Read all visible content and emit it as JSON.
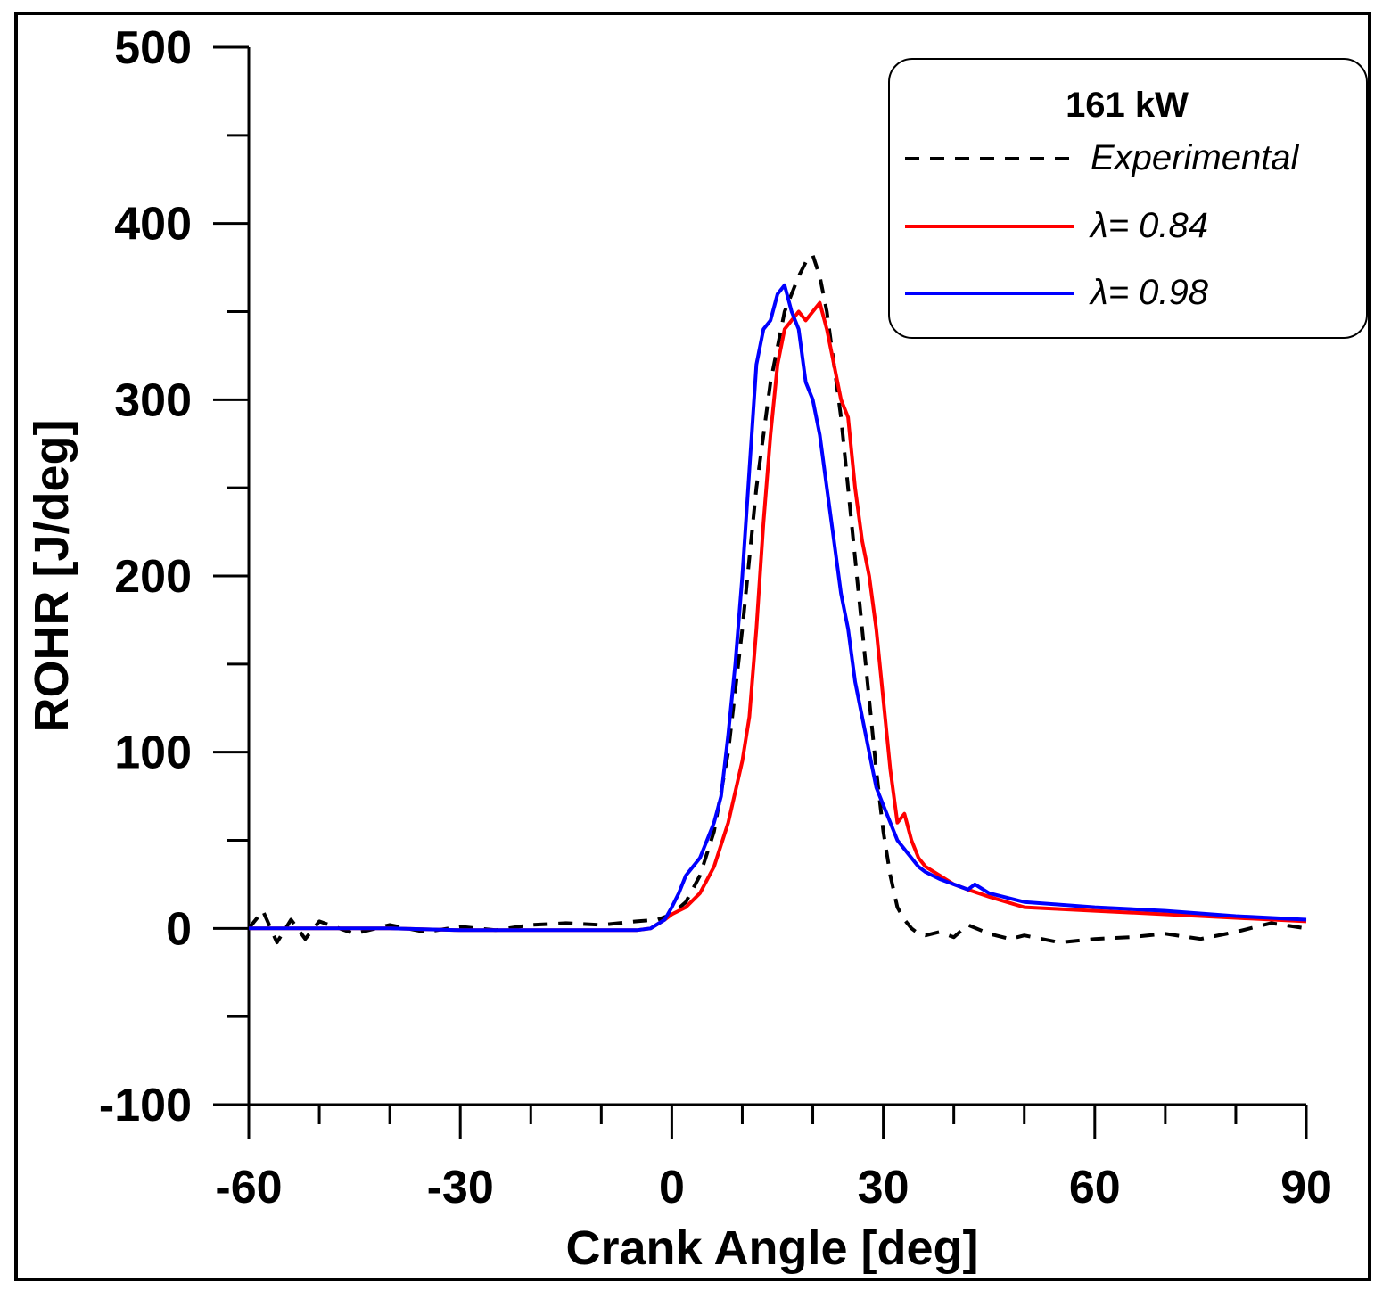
{
  "chart_data": {
    "type": "line",
    "xlabel": "Crank Angle [deg]",
    "ylabel": "ROHR [J/deg]",
    "xlim": [
      -60,
      90
    ],
    "ylim": [
      -100,
      500
    ],
    "xticks": [
      -60,
      -30,
      0,
      30,
      60,
      90
    ],
    "yticks": [
      -100,
      0,
      100,
      200,
      300,
      400,
      500
    ],
    "xtick_labels": [
      "-60",
      "-30",
      "0",
      "30",
      "60",
      "90"
    ],
    "ytick_labels": [
      "-100",
      "0",
      "100",
      "200",
      "300",
      "400",
      "500"
    ],
    "legend": {
      "title": "161 kW",
      "position": "top-right",
      "entries": [
        "Experimental",
        "λ= 0.84",
        "λ= 0.98"
      ]
    },
    "series": [
      {
        "name": "Experimental",
        "color": "#000000",
        "style": "dashed",
        "x": [
          -60,
          -58,
          -56,
          -54,
          -52,
          -50,
          -45,
          -40,
          -35,
          -30,
          -25,
          -20,
          -15,
          -10,
          -5,
          -2,
          0,
          2,
          4,
          6,
          8,
          10,
          12,
          14,
          16,
          18,
          19,
          20,
          21,
          22,
          23,
          24,
          25,
          26,
          27,
          28,
          29,
          30,
          31,
          32,
          33,
          34,
          35,
          36,
          38,
          40,
          42,
          45,
          48,
          50,
          55,
          60,
          65,
          70,
          75,
          80,
          85,
          90
        ],
        "y": [
          0,
          10,
          -8,
          5,
          -6,
          4,
          -3,
          2,
          -2,
          1,
          -1,
          2,
          3,
          2,
          4,
          5,
          8,
          15,
          30,
          55,
          100,
          170,
          250,
          310,
          350,
          370,
          378,
          382,
          370,
          350,
          320,
          290,
          250,
          210,
          170,
          130,
          90,
          55,
          30,
          12,
          5,
          0,
          -3,
          -4,
          -2,
          -5,
          2,
          -3,
          -6,
          -4,
          -8,
          -6,
          -5,
          -3,
          -6,
          -2,
          3,
          0
        ]
      },
      {
        "name": "λ= 0.84",
        "color": "#ff0000",
        "style": "solid",
        "x": [
          -60,
          -50,
          -40,
          -30,
          -20,
          -10,
          -5,
          -3,
          -1,
          0,
          2,
          4,
          6,
          8,
          10,
          11,
          12,
          13,
          14,
          15,
          16,
          17,
          18,
          19,
          20,
          21,
          22,
          23,
          24,
          25,
          26,
          27,
          28,
          29,
          30,
          31,
          32,
          33,
          34,
          35,
          36,
          38,
          40,
          42,
          45,
          50,
          60,
          70,
          80,
          90
        ],
        "y": [
          0,
          0,
          0,
          -1,
          -1,
          -1,
          -1,
          0,
          5,
          8,
          12,
          20,
          35,
          60,
          95,
          120,
          170,
          230,
          280,
          320,
          340,
          345,
          350,
          345,
          350,
          355,
          340,
          320,
          300,
          290,
          250,
          220,
          200,
          170,
          130,
          90,
          60,
          65,
          50,
          40,
          35,
          30,
          25,
          22,
          18,
          12,
          10,
          8,
          6,
          4
        ]
      },
      {
        "name": "λ= 0.98",
        "color": "#0000ff",
        "style": "solid",
        "x": [
          -60,
          -50,
          -40,
          -30,
          -20,
          -10,
          -5,
          -3,
          -1,
          0,
          1,
          2,
          4,
          5,
          6,
          7,
          8,
          9,
          10,
          11,
          12,
          13,
          14,
          15,
          16,
          17,
          18,
          19,
          20,
          21,
          22,
          23,
          24,
          25,
          26,
          27,
          28,
          29,
          30,
          31,
          32,
          33,
          34,
          35,
          36,
          38,
          40,
          42,
          43,
          45,
          50,
          60,
          70,
          80,
          90
        ],
        "y": [
          0,
          0,
          0,
          -1,
          -1,
          -1,
          -1,
          0,
          5,
          12,
          20,
          30,
          40,
          50,
          60,
          75,
          110,
          150,
          200,
          260,
          320,
          340,
          345,
          360,
          365,
          350,
          340,
          310,
          300,
          280,
          250,
          220,
          190,
          170,
          140,
          120,
          100,
          80,
          70,
          60,
          50,
          45,
          40,
          35,
          32,
          28,
          25,
          22,
          25,
          20,
          15,
          12,
          10,
          7,
          5
        ]
      }
    ]
  }
}
